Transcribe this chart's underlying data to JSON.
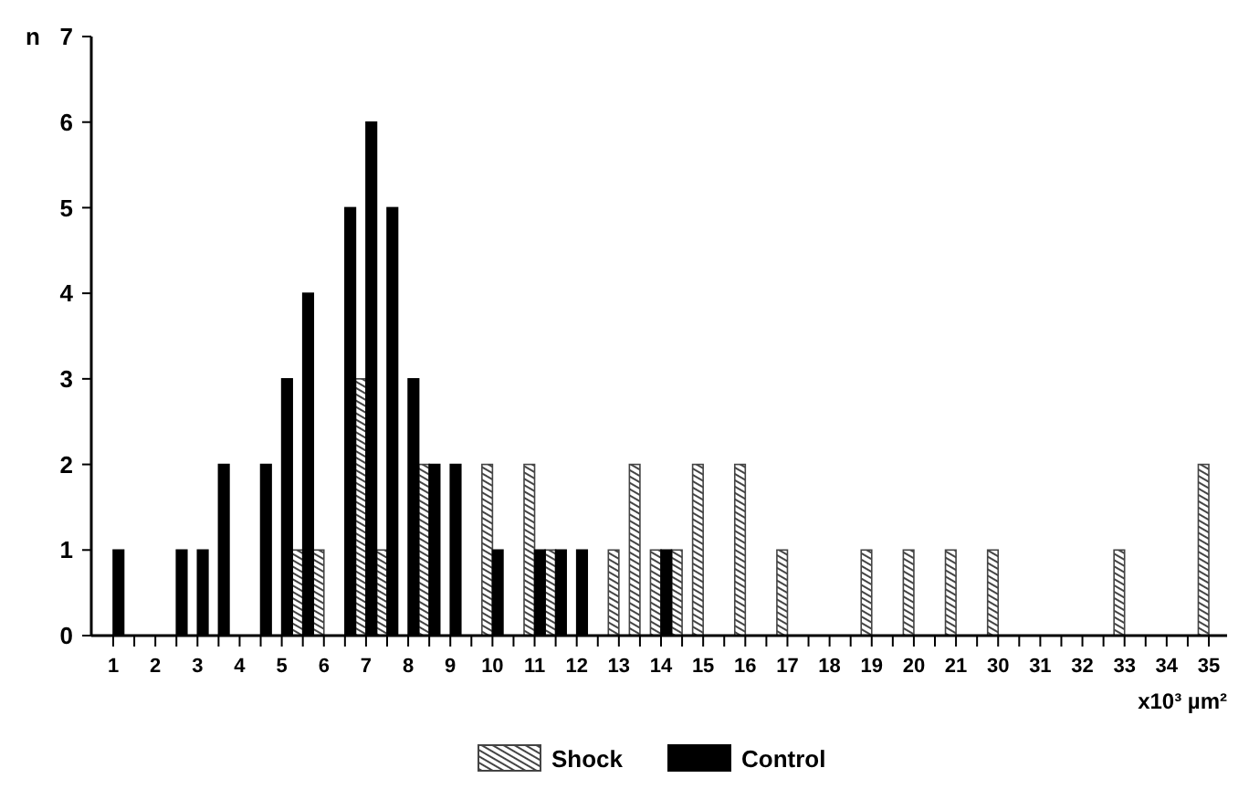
{
  "chart_data": {
    "type": "bar",
    "ylabel": "n",
    "xlabel": "x10³ µm²",
    "categories": [
      "1",
      null,
      "2",
      null,
      "3",
      null,
      "4",
      null,
      "5",
      null,
      "6",
      null,
      "7",
      null,
      "8",
      null,
      "9",
      null,
      "10",
      null,
      "11",
      null,
      "12",
      null,
      "13",
      null,
      "14",
      null,
      "15",
      null,
      "16",
      null,
      "17",
      null,
      "18",
      null,
      "19",
      null,
      "20",
      null,
      "21",
      null,
      "30",
      null,
      "31",
      null,
      "32",
      null,
      "33",
      null,
      "34",
      null,
      "35"
    ],
    "series": [
      {
        "name": "Shock",
        "color": "#444444",
        "values": [
          0,
          0,
          0,
          0,
          0,
          0,
          0,
          0,
          0,
          1,
          1,
          0,
          3,
          1,
          0,
          2,
          0,
          0,
          2,
          0,
          2,
          1,
          0,
          0,
          1,
          2,
          1,
          1,
          2,
          0,
          2,
          0,
          1,
          0,
          0,
          0,
          1,
          0,
          1,
          0,
          1,
          0,
          1,
          0,
          0,
          0,
          0,
          0,
          1,
          0,
          0,
          0,
          2
        ]
      },
      {
        "name": "Control",
        "color": "#000000",
        "values": [
          1,
          0,
          0,
          1,
          1,
          2,
          0,
          2,
          3,
          4,
          0,
          5,
          6,
          5,
          3,
          2,
          2,
          0,
          1,
          0,
          1,
          1,
          1,
          0,
          0,
          0,
          1,
          0,
          0,
          0,
          0,
          0,
          0,
          0,
          0,
          0,
          0,
          0,
          0,
          0,
          0,
          0,
          0,
          0,
          0,
          0,
          0,
          0,
          0,
          0,
          0,
          0,
          0
        ]
      }
    ],
    "ylim": [
      0,
      7
    ],
    "yticks": [
      0,
      1,
      2,
      3,
      4,
      5,
      6,
      7
    ],
    "grid": false,
    "legend": "bottom"
  }
}
